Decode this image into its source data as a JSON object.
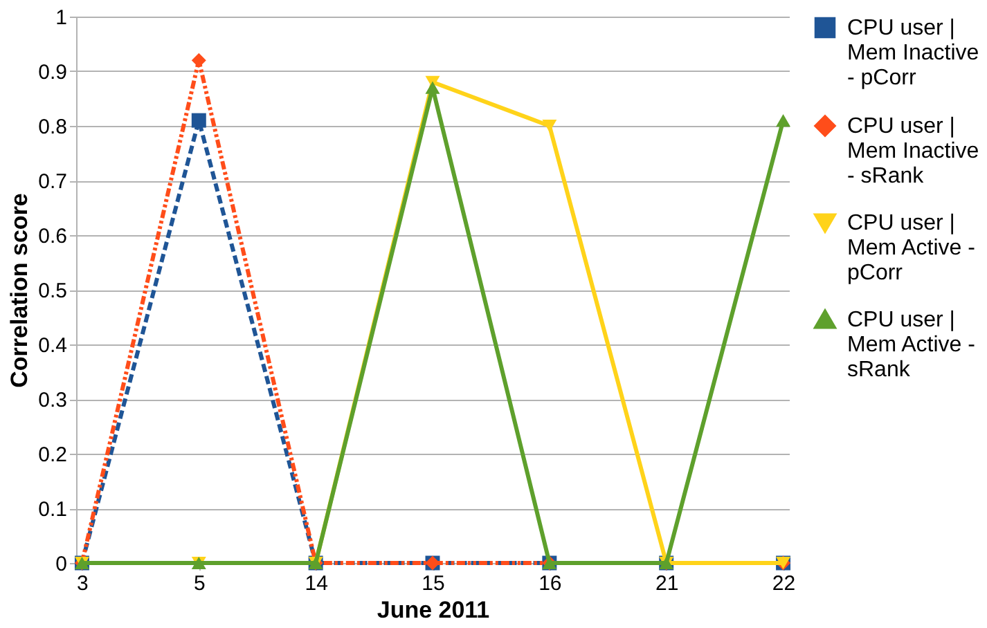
{
  "chart_data": {
    "type": "line",
    "xlabel": "June 2011",
    "ylabel": "Correlation score",
    "categories": [
      "3",
      "5",
      "14",
      "15",
      "16",
      "21",
      "22"
    ],
    "series": [
      {
        "name": "CPU user | Mem Inactive - pCorr",
        "color": "#1f5596",
        "marker": "square",
        "line_style": "dashed",
        "values": [
          0,
          0.81,
          0,
          0,
          0,
          0,
          0
        ]
      },
      {
        "name": "CPU user | Mem Inactive - sRank",
        "color": "#ff4d1a",
        "marker": "diamond",
        "line_style": "dotted",
        "values": [
          0,
          0.92,
          0,
          0,
          0,
          0,
          0
        ]
      },
      {
        "name": "CPU user | Mem Active - pCorr",
        "color": "#ffd31a",
        "marker": "triangle-down",
        "line_style": "solid",
        "values": [
          0,
          0,
          0,
          0.88,
          0.8,
          0,
          0
        ]
      },
      {
        "name": "CPU user | Mem Active - sRank",
        "color": "#5ea02c",
        "marker": "triangle-up",
        "line_style": "solid",
        "values": [
          0,
          0,
          0,
          0.87,
          0,
          0,
          0.81
        ]
      }
    ],
    "ylim": [
      0,
      1
    ],
    "yticks": [
      0,
      0.1,
      0.2,
      0.3,
      0.4,
      0.5,
      0.6,
      0.7,
      0.8,
      0.9,
      1
    ],
    "grid": "y",
    "legend": "right"
  }
}
